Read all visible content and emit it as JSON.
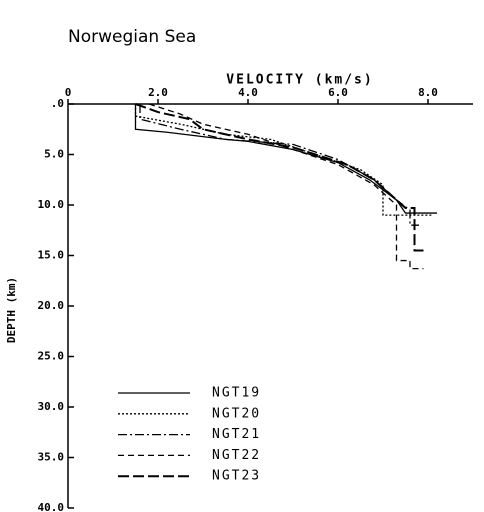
{
  "chart_data": {
    "type": "line",
    "title": "Norwegian Sea",
    "xlabel": "VELOCITY (km/s)",
    "ylabel": "DEPTH (km)",
    "xlim": [
      0,
      9
    ],
    "ylim": [
      0,
      40
    ],
    "y_inverted": true,
    "x_axis_position": "top",
    "xticks": [
      0,
      {
        "value": 2,
        "label": "2.0"
      },
      {
        "value": 4,
        "label": "4.0"
      },
      {
        "value": 6,
        "label": "6.0"
      },
      {
        "value": 8,
        "label": "8.0"
      }
    ],
    "yticks": [
      {
        "value": 0,
        "label": ".0"
      },
      {
        "value": 5,
        "label": "5.0"
      },
      {
        "value": 10,
        "label": "10.0"
      },
      {
        "value": 15,
        "label": "15.0"
      },
      {
        "value": 20,
        "label": "20.0"
      },
      {
        "value": 25,
        "label": "25.0"
      },
      {
        "value": 30,
        "label": "30.0"
      },
      {
        "value": 35,
        "label": "35.0"
      },
      {
        "value": 40,
        "label": "40.0"
      }
    ],
    "legend": "lower-left",
    "series": [
      {
        "name": "NGT19",
        "color": "#000000",
        "linestyle": "solid",
        "x": [
          1.5,
          1.5,
          2.2,
          3.5,
          4.0,
          5.0,
          6.0,
          6.7,
          7.0,
          7.3,
          7.5,
          8.2
        ],
        "values": [
          0,
          2.5,
          2.8,
          3.5,
          3.7,
          4.5,
          5.8,
          7.5,
          8.5,
          9.5,
          10.8,
          10.8
        ]
      },
      {
        "name": "NGT20",
        "color": "#000000",
        "linestyle": "dotted",
        "x": [
          1.5,
          1.5,
          2.5,
          3.5,
          4.5,
          5.5,
          6.5,
          7.0,
          7.0,
          8.1
        ],
        "values": [
          0,
          1.2,
          2.0,
          3.0,
          3.5,
          5.0,
          6.5,
          8.0,
          11.0,
          11.0
        ]
      },
      {
        "name": "NGT21",
        "color": "#000000",
        "linestyle": "dashdot",
        "x": [
          1.6,
          1.6,
          2.5,
          3.5,
          5.0,
          6.0,
          6.8,
          7.3,
          7.6,
          7.6,
          7.8
        ],
        "values": [
          0,
          1.5,
          2.5,
          3.5,
          4.0,
          5.5,
          7.5,
          9.5,
          10.5,
          12.0,
          12.0
        ]
      },
      {
        "name": "NGT22",
        "color": "#000000",
        "linestyle": "dashed",
        "x": [
          1.8,
          2.5,
          3.0,
          4.0,
          5.0,
          6.0,
          6.8,
          7.3,
          7.3,
          7.6,
          7.6,
          7.9
        ],
        "values": [
          0,
          1.0,
          2.0,
          3.0,
          4.5,
          6.0,
          8.0,
          10.0,
          15.5,
          15.5,
          16.3,
          16.3
        ]
      },
      {
        "name": "NGT23",
        "color": "#000000",
        "linestyle": "longdash",
        "x": [
          1.5,
          2.0,
          2.7,
          3.0,
          4.0,
          5.0,
          5.5,
          6.2,
          6.8,
          7.3,
          7.5,
          7.7,
          7.7,
          7.9
        ],
        "values": [
          0,
          0.8,
          1.5,
          2.5,
          3.5,
          4.3,
          5.0,
          6.0,
          7.5,
          9.5,
          10.3,
          10.3,
          14.5,
          14.5
        ]
      }
    ]
  }
}
